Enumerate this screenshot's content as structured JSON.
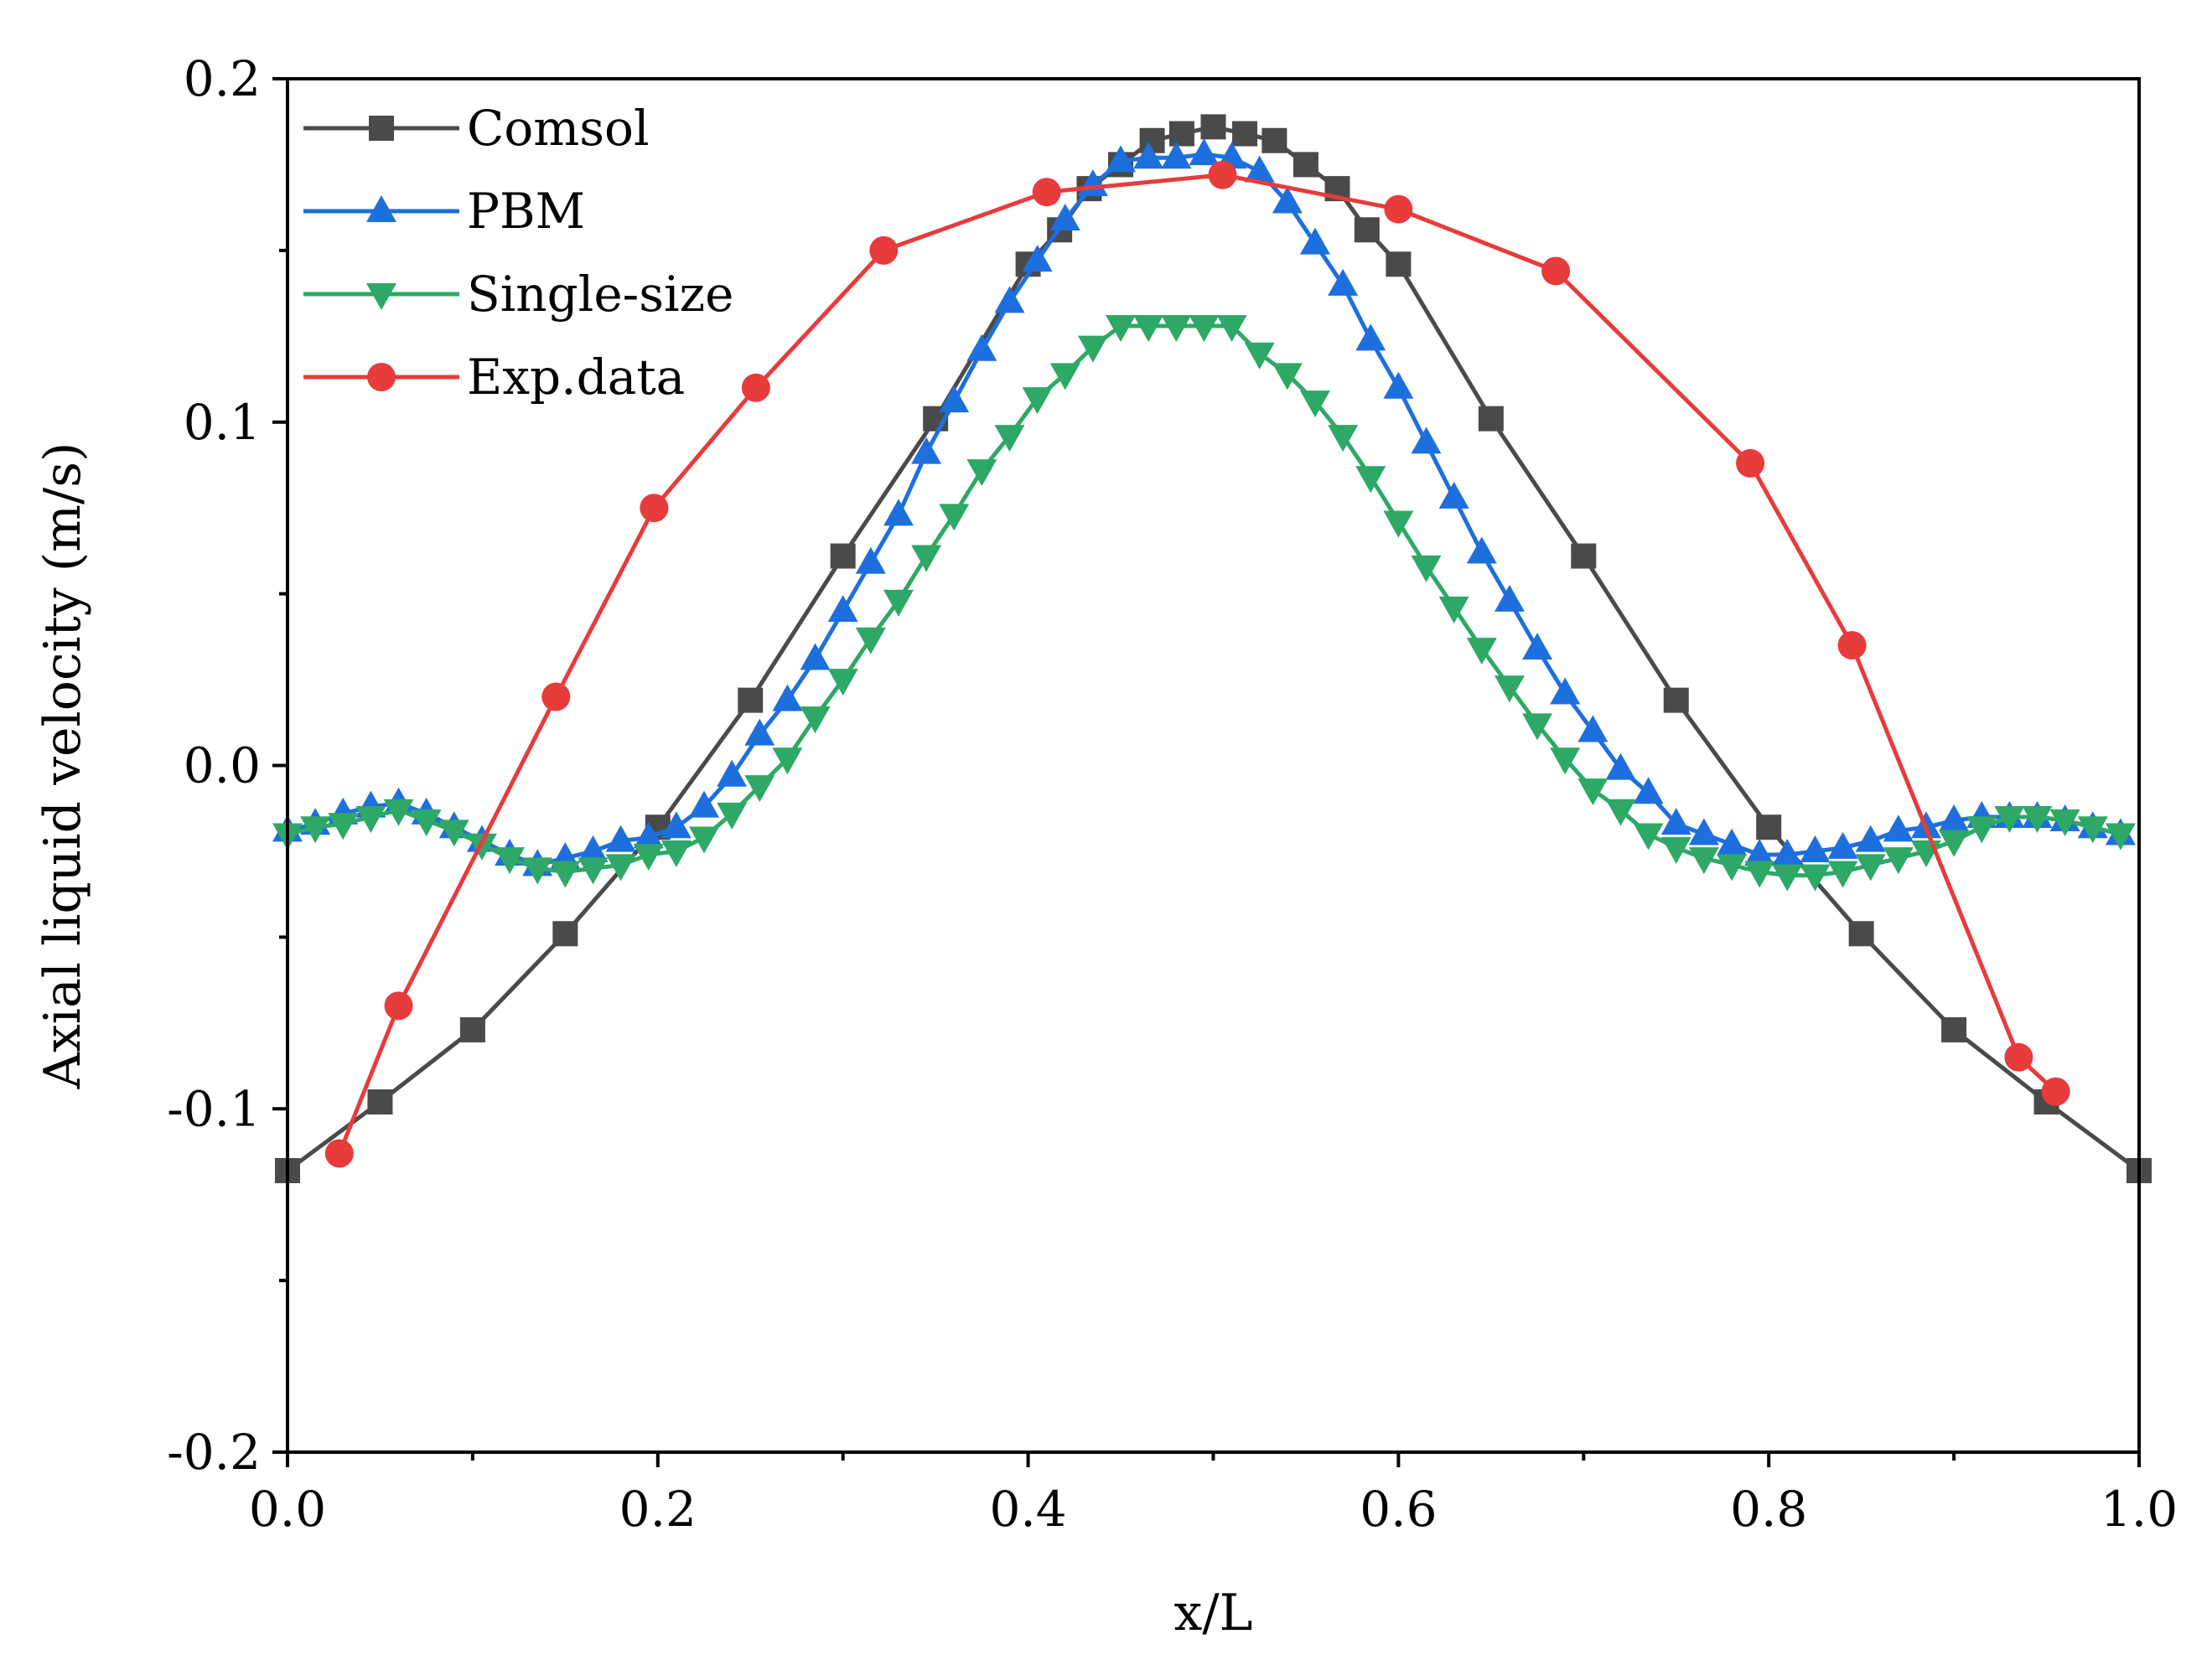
{
  "chart_data": {
    "type": "line",
    "title": "",
    "xlabel": "x/L",
    "ylabel": "Axial liquid velocity (m/s)",
    "xlim": [
      0.0,
      1.0
    ],
    "ylim": [
      -0.2,
      0.2
    ],
    "xticks": [
      0.0,
      0.2,
      0.4,
      0.6,
      0.8,
      1.0
    ],
    "xtick_labels": [
      "0.0",
      "0.2",
      "0.4",
      "0.6",
      "0.8",
      "1.0"
    ],
    "yticks": [
      -0.2,
      -0.1,
      0.0,
      0.1,
      0.2
    ],
    "ytick_labels": [
      "-0.2",
      "-0.1",
      "0.0",
      "0.1",
      "0.2"
    ],
    "grid": false,
    "legend_position": "top-left",
    "series": [
      {
        "name": "Comsol",
        "color": "#4a4a4a",
        "marker": "square",
        "x": [
          0.0,
          0.05,
          0.1,
          0.15,
          0.2,
          0.25,
          0.3,
          0.35,
          0.4,
          0.417,
          0.433,
          0.45,
          0.467,
          0.483,
          0.5,
          0.517,
          0.533,
          0.55,
          0.567,
          0.583,
          0.6,
          0.65,
          0.7,
          0.75,
          0.8,
          0.85,
          0.9,
          0.95,
          1.0
        ],
        "y": [
          -0.118,
          -0.098,
          -0.077,
          -0.049,
          -0.018,
          0.019,
          0.061,
          0.101,
          0.146,
          0.156,
          0.168,
          0.175,
          0.182,
          0.184,
          0.186,
          0.184,
          0.182,
          0.175,
          0.168,
          0.156,
          0.146,
          0.101,
          0.061,
          0.019,
          -0.018,
          -0.049,
          -0.077,
          -0.098,
          -0.118
        ]
      },
      {
        "name": "PBM",
        "color": "#1e6fde",
        "marker": "triangle-up",
        "x": [
          0.0,
          0.015,
          0.03,
          0.045,
          0.06,
          0.075,
          0.09,
          0.105,
          0.12,
          0.135,
          0.15,
          0.165,
          0.18,
          0.195,
          0.21,
          0.225,
          0.24,
          0.255,
          0.27,
          0.285,
          0.3,
          0.315,
          0.33,
          0.345,
          0.36,
          0.375,
          0.39,
          0.405,
          0.42,
          0.435,
          0.45,
          0.465,
          0.48,
          0.495,
          0.51,
          0.525,
          0.54,
          0.555,
          0.57,
          0.585,
          0.6,
          0.615,
          0.63,
          0.645,
          0.66,
          0.675,
          0.69,
          0.705,
          0.72,
          0.735,
          0.75,
          0.765,
          0.78,
          0.795,
          0.81,
          0.825,
          0.84,
          0.855,
          0.87,
          0.885,
          0.9,
          0.915,
          0.93,
          0.945,
          0.96,
          0.975,
          0.99
        ],
        "y": [
          -0.019,
          -0.017,
          -0.014,
          -0.012,
          -0.011,
          -0.014,
          -0.018,
          -0.022,
          -0.026,
          -0.029,
          -0.027,
          -0.025,
          -0.022,
          -0.021,
          -0.018,
          -0.012,
          -0.003,
          0.009,
          0.019,
          0.031,
          0.045,
          0.059,
          0.073,
          0.091,
          0.106,
          0.121,
          0.135,
          0.147,
          0.159,
          0.169,
          0.176,
          0.177,
          0.177,
          0.178,
          0.177,
          0.173,
          0.164,
          0.152,
          0.14,
          0.124,
          0.11,
          0.094,
          0.078,
          0.062,
          0.048,
          0.034,
          0.021,
          0.01,
          -0.001,
          -0.008,
          -0.017,
          -0.02,
          -0.023,
          -0.026,
          -0.026,
          -0.025,
          -0.024,
          -0.022,
          -0.019,
          -0.018,
          -0.016,
          -0.015,
          -0.015,
          -0.015,
          -0.016,
          -0.018,
          -0.02
        ]
      },
      {
        "name": "Single-size",
        "color": "#2ea866",
        "marker": "triangle-down",
        "x": [
          0.0,
          0.015,
          0.03,
          0.045,
          0.06,
          0.075,
          0.09,
          0.105,
          0.12,
          0.135,
          0.15,
          0.165,
          0.18,
          0.195,
          0.21,
          0.225,
          0.24,
          0.255,
          0.27,
          0.285,
          0.3,
          0.315,
          0.33,
          0.345,
          0.36,
          0.375,
          0.39,
          0.405,
          0.42,
          0.435,
          0.45,
          0.465,
          0.48,
          0.495,
          0.51,
          0.525,
          0.54,
          0.555,
          0.57,
          0.585,
          0.6,
          0.615,
          0.63,
          0.645,
          0.66,
          0.675,
          0.69,
          0.705,
          0.72,
          0.735,
          0.75,
          0.765,
          0.78,
          0.795,
          0.81,
          0.825,
          0.84,
          0.855,
          0.87,
          0.885,
          0.9,
          0.915,
          0.93,
          0.945,
          0.96,
          0.975,
          0.99
        ],
        "y": [
          -0.02,
          -0.018,
          -0.017,
          -0.015,
          -0.013,
          -0.016,
          -0.019,
          -0.023,
          -0.027,
          -0.03,
          -0.031,
          -0.03,
          -0.029,
          -0.026,
          -0.025,
          -0.021,
          -0.014,
          -0.006,
          0.002,
          0.014,
          0.025,
          0.037,
          0.048,
          0.061,
          0.073,
          0.086,
          0.096,
          0.107,
          0.114,
          0.122,
          0.128,
          0.128,
          0.128,
          0.128,
          0.128,
          0.12,
          0.114,
          0.106,
          0.096,
          0.084,
          0.071,
          0.058,
          0.046,
          0.034,
          0.023,
          0.012,
          0.002,
          -0.007,
          -0.013,
          -0.02,
          -0.024,
          -0.027,
          -0.029,
          -0.031,
          -0.032,
          -0.032,
          -0.031,
          -0.029,
          -0.027,
          -0.025,
          -0.022,
          -0.018,
          -0.015,
          -0.015,
          -0.016,
          -0.018,
          -0.02
        ]
      },
      {
        "name": "Exp.data",
        "color": "#e83b3b",
        "marker": "circle",
        "x": [
          0.028,
          0.06,
          0.145,
          0.198,
          0.253,
          0.322,
          0.41,
          0.505,
          0.6,
          0.685,
          0.79,
          0.845,
          0.935,
          0.955
        ],
        "y": [
          -0.113,
          -0.07,
          0.02,
          0.075,
          0.11,
          0.15,
          0.167,
          0.172,
          0.162,
          0.144,
          0.088,
          0.035,
          -0.085,
          -0.095
        ]
      }
    ]
  }
}
